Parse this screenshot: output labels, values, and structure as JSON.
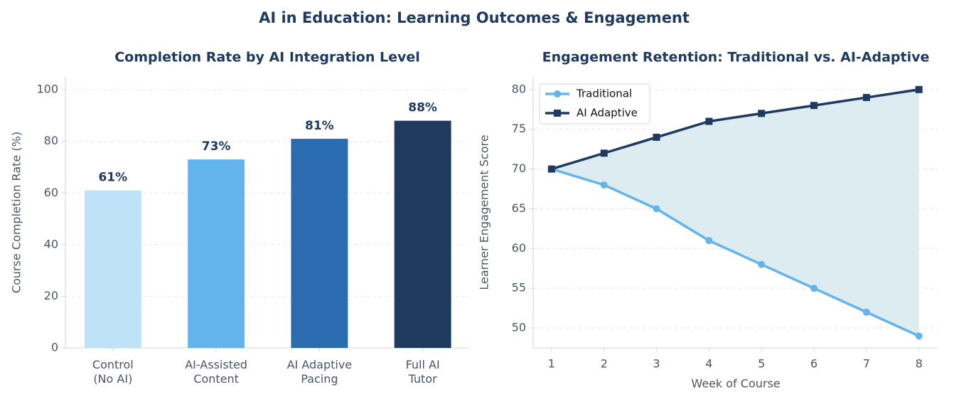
{
  "title": "AI in Education: Learning Outcomes & Engagement",
  "chart_data": [
    {
      "type": "bar",
      "title": "Completion Rate by AI Integration Level",
      "ylabel": "Course Completion Rate (%)",
      "categories": [
        "Control\n(No AI)",
        "AI-Assisted\nContent",
        "AI Adaptive\nPacing",
        "Full AI\nTutor"
      ],
      "values": [
        61,
        73,
        81,
        88
      ],
      "value_labels": [
        "61%",
        "73%",
        "81%",
        "88%"
      ],
      "colors": [
        "#bee3f8",
        "#63b3ed",
        "#2b6cb0",
        "#1e3a5f"
      ],
      "ylim": [
        0,
        105
      ],
      "yticks": [
        0,
        20,
        40,
        60,
        80,
        100
      ],
      "grid": true
    },
    {
      "type": "line",
      "title": "Engagement Retention: Traditional vs. AI-Adaptive",
      "xlabel": "Week of Course",
      "ylabel": "Learner Engagement Score",
      "x": [
        1,
        2,
        3,
        4,
        5,
        6,
        7,
        8
      ],
      "series": [
        {
          "name": "Traditional",
          "color": "#63b3ed",
          "marker": "circle",
          "values": [
            70,
            68,
            65,
            61,
            58,
            55,
            52,
            49
          ]
        },
        {
          "name": "AI Adaptive",
          "color": "#1e3a5f",
          "marker": "square",
          "values": [
            70,
            72,
            74,
            76,
            77,
            78,
            79,
            80
          ]
        }
      ],
      "fill_between": {
        "color": "#dbebef"
      },
      "xlim": [
        0.65,
        8.37
      ],
      "xticks": [
        1,
        2,
        3,
        4,
        5,
        6,
        7,
        8
      ],
      "ylim": [
        47.5,
        81.6
      ],
      "yticks": [
        50,
        55,
        60,
        65,
        70,
        75,
        80
      ],
      "grid": true,
      "legend": "upper left"
    }
  ]
}
